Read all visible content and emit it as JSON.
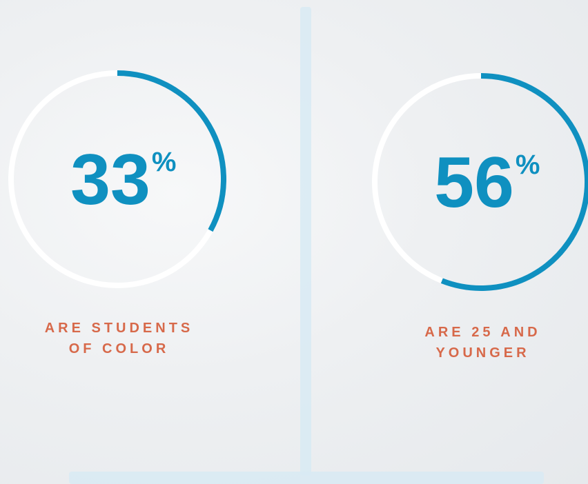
{
  "stats": [
    {
      "value": 33,
      "unit": "%",
      "label_lines": [
        "ARE STUDENTS",
        "OF COLOR"
      ]
    },
    {
      "value": 56,
      "unit": "%",
      "label_lines": [
        "ARE 25 AND",
        "YOUNGER"
      ]
    }
  ]
}
